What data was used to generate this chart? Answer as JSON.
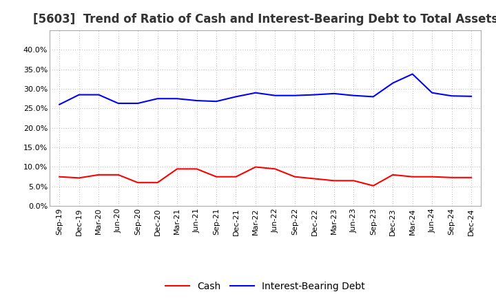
{
  "title": "[5603]  Trend of Ratio of Cash and Interest-Bearing Debt to Total Assets",
  "x_labels": [
    "Sep-19",
    "Dec-19",
    "Mar-20",
    "Jun-20",
    "Sep-20",
    "Dec-20",
    "Mar-21",
    "Jun-21",
    "Sep-21",
    "Dec-21",
    "Mar-22",
    "Jun-22",
    "Sep-22",
    "Dec-22",
    "Mar-23",
    "Jun-23",
    "Sep-23",
    "Dec-23",
    "Mar-24",
    "Jun-24",
    "Sep-24",
    "Dec-24"
  ],
  "cash": [
    0.075,
    0.072,
    0.08,
    0.08,
    0.06,
    0.06,
    0.095,
    0.095,
    0.075,
    0.075,
    0.1,
    0.095,
    0.075,
    0.07,
    0.065,
    0.065,
    0.052,
    0.08,
    0.075,
    0.075,
    0.073,
    0.073
  ],
  "debt": [
    0.26,
    0.285,
    0.285,
    0.263,
    0.263,
    0.275,
    0.275,
    0.27,
    0.268,
    0.28,
    0.29,
    0.283,
    0.283,
    0.285,
    0.288,
    0.283,
    0.28,
    0.315,
    0.338,
    0.29,
    0.282,
    0.281
  ],
  "cash_color": "#ff0000",
  "debt_color": "#0000ff",
  "background_color": "#ffffff",
  "plot_bg_color": "#ffffff",
  "grid_color": "#999999",
  "ylim": [
    0.0,
    0.45
  ],
  "yticks": [
    0.0,
    0.05,
    0.1,
    0.15,
    0.2,
    0.25,
    0.3,
    0.35,
    0.4
  ],
  "legend_cash": "Cash",
  "legend_debt": "Interest-Bearing Debt",
  "title_fontsize": 12,
  "axis_fontsize": 8,
  "legend_fontsize": 10,
  "line_width": 1.5
}
